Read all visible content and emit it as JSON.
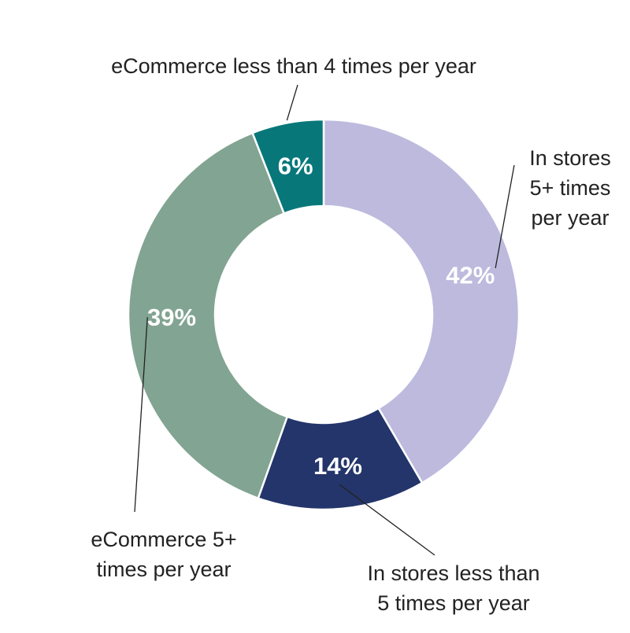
{
  "chart_data": {
    "type": "pie",
    "variant": "donut",
    "categories": [
      "In stores 5+ times per year",
      "In stores less than 5 times per year",
      "eCommerce 5+ times per year",
      "eCommerce less than 4 times per year"
    ],
    "values": [
      42,
      14,
      39,
      6
    ],
    "value_labels": [
      "42%",
      "14%",
      "39%",
      "6%"
    ],
    "label_lines": [
      [
        "In stores",
        "5+ times",
        "per year"
      ],
      [
        "In stores less than",
        "5 times per year"
      ],
      [
        "eCommerce 5+",
        "times per year"
      ],
      [
        "eCommerce less than 4 times per year"
      ]
    ],
    "colors": [
      "#bdbade",
      "#23356a",
      "#82a492",
      "#08777a"
    ],
    "legend": "none"
  }
}
